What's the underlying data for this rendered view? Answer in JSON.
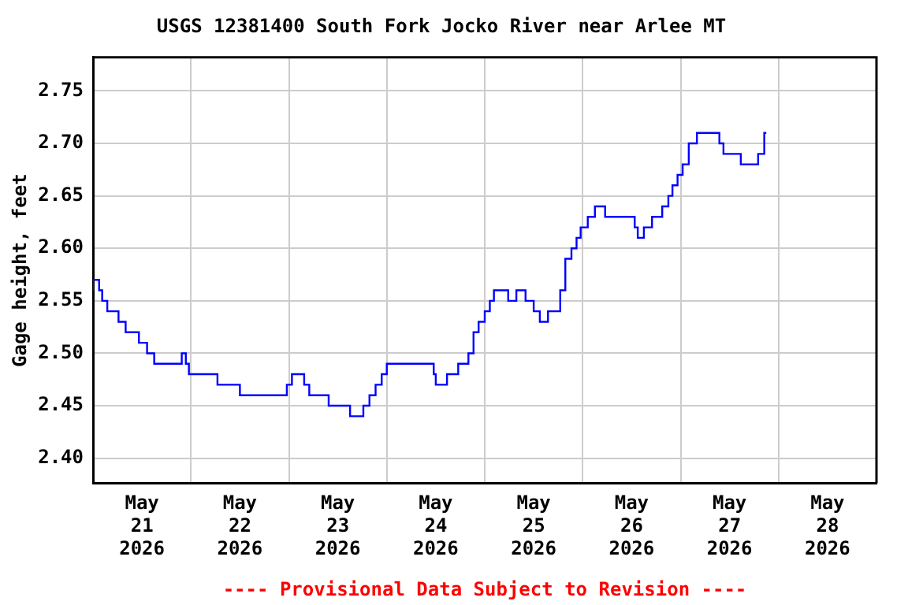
{
  "chart_data": {
    "type": "step",
    "title": "USGS 12381400 South Fork Jocko River near Arlee MT",
    "ylabel": "Gage height, feet",
    "annotations": [
      "---- Provisional Data Subject to Revision ----"
    ],
    "x": [
      "2026-05-21T00:00",
      "2026-05-21T01:30",
      "2026-05-21T02:15",
      "2026-05-21T03:30",
      "2026-05-21T06:15",
      "2026-05-21T08:00",
      "2026-05-21T11:15",
      "2026-05-21T13:15",
      "2026-05-21T15:00",
      "2026-05-21T16:30",
      "2026-05-21T21:45",
      "2026-05-21T22:45",
      "2026-05-21T23:30",
      "2026-05-22T06:30",
      "2026-05-22T12:00",
      "2026-05-22T17:00",
      "2026-05-22T23:30",
      "2026-05-23T00:45",
      "2026-05-23T03:45",
      "2026-05-23T05:00",
      "2026-05-23T09:45",
      "2026-05-23T15:00",
      "2026-05-23T18:15",
      "2026-05-23T19:45",
      "2026-05-23T21:15",
      "2026-05-23T22:45",
      "2026-05-24T00:00",
      "2026-05-24T01:15",
      "2026-05-24T11:30",
      "2026-05-24T12:00",
      "2026-05-24T14:45",
      "2026-05-24T17:30",
      "2026-05-24T20:00",
      "2026-05-24T21:15",
      "2026-05-24T22:30",
      "2026-05-25T00:00",
      "2026-05-25T01:15",
      "2026-05-25T02:15",
      "2026-05-25T05:45",
      "2026-05-25T07:45",
      "2026-05-25T10:00",
      "2026-05-25T12:00",
      "2026-05-25T13:30",
      "2026-05-25T15:30",
      "2026-05-25T18:30",
      "2026-05-25T19:45",
      "2026-05-25T21:15",
      "2026-05-25T22:30",
      "2026-05-25T23:30",
      "2026-05-26T01:15",
      "2026-05-26T03:00",
      "2026-05-26T05:30",
      "2026-05-26T06:30",
      "2026-05-26T12:45",
      "2026-05-26T13:30",
      "2026-05-26T15:00",
      "2026-05-26T17:00",
      "2026-05-26T19:30",
      "2026-05-26T21:00",
      "2026-05-26T22:00",
      "2026-05-26T23:15",
      "2026-05-27T00:30",
      "2026-05-27T02:00",
      "2026-05-27T04:00",
      "2026-05-27T06:15",
      "2026-05-27T09:30",
      "2026-05-27T10:30",
      "2026-05-27T11:30",
      "2026-05-27T14:45",
      "2026-05-27T15:30",
      "2026-05-27T19:00",
      "2026-05-27T19:15",
      "2026-05-27T20:30",
      "2026-05-27T21:00"
    ],
    "series": [
      {
        "color": "#0000ff",
        "values": [
          2.56,
          2.57,
          2.56,
          2.55,
          2.54,
          2.53,
          2.52,
          2.51,
          2.5,
          2.49,
          2.49,
          2.5,
          2.49,
          2.48,
          2.47,
          2.46,
          2.46,
          2.47,
          2.48,
          2.47,
          2.46,
          2.45,
          2.44,
          2.45,
          2.46,
          2.47,
          2.48,
          2.49,
          2.49,
          2.48,
          2.47,
          2.48,
          2.49,
          2.5,
          2.52,
          2.53,
          2.54,
          2.55,
          2.56,
          2.55,
          2.56,
          2.55,
          2.54,
          2.53,
          2.54,
          2.56,
          2.59,
          2.6,
          2.61,
          2.62,
          2.63,
          2.64,
          2.63,
          2.63,
          2.62,
          2.61,
          2.62,
          2.63,
          2.64,
          2.65,
          2.66,
          2.67,
          2.68,
          2.7,
          2.71,
          2.71,
          2.7,
          2.69,
          2.69,
          2.68,
          2.68,
          2.69,
          2.69,
          2.71
        ]
      }
    ],
    "xlim": [
      "2026-05-21T00:00",
      "2026-05-29T00:00"
    ],
    "xticks": [
      {
        "value": "2026-05-21T12:00",
        "label": "May\n21\n2026"
      },
      {
        "value": "2026-05-22T00:00",
        "label": null
      },
      {
        "value": "2026-05-22T12:00",
        "label": "May\n22\n2026"
      },
      {
        "value": "2026-05-23T00:00",
        "label": null
      },
      {
        "value": "2026-05-23T12:00",
        "label": "May\n23\n2026"
      },
      {
        "value": "2026-05-24T00:00",
        "label": null
      },
      {
        "value": "2026-05-24T12:00",
        "label": "May\n24\n2026"
      },
      {
        "value": "2026-05-25T00:00",
        "label": null
      },
      {
        "value": "2026-05-25T12:00",
        "label": "May\n25\n2026"
      },
      {
        "value": "2026-05-26T00:00",
        "label": null
      },
      {
        "value": "2026-05-26T12:00",
        "label": "May\n26\n2026"
      },
      {
        "value": "2026-05-27T00:00",
        "label": null
      },
      {
        "value": "2026-05-27T12:00",
        "label": "May\n27\n2026"
      },
      {
        "value": "2026-05-28T00:00",
        "label": null
      },
      {
        "value": "2026-05-28T12:00",
        "label": "May\n28\n2026"
      }
    ],
    "ylim": [
      2.376,
      2.782
    ],
    "yticks": [
      {
        "value": 2.4,
        "label": "2.40"
      },
      {
        "value": 2.45,
        "label": "2.45"
      },
      {
        "value": 2.5,
        "label": "2.50"
      },
      {
        "value": 2.55,
        "label": "2.55"
      },
      {
        "value": 2.6,
        "label": "2.60"
      },
      {
        "value": 2.65,
        "label": "2.65"
      },
      {
        "value": 2.7,
        "label": "2.70"
      },
      {
        "value": 2.75,
        "label": "2.75"
      }
    ],
    "grid": true,
    "legend": false,
    "marker": "none",
    "line_style": "solid"
  }
}
